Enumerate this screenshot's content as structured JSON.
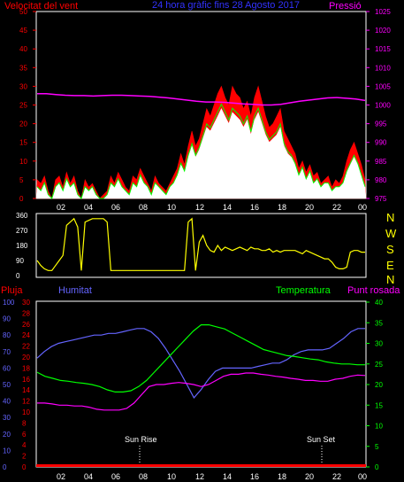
{
  "header": {
    "left": "Velocitat del vent",
    "center": "24 hora gràfic fins 28 Agosto 2017",
    "right": "Pressió"
  },
  "compass": [
    "N",
    "W",
    "S",
    "E",
    "N"
  ],
  "colors": {
    "red": "#ff0000",
    "green": "#00ff00",
    "white": "#ffffff",
    "magenta": "#ff00ff",
    "yellow": "#ffff00",
    "blue": "#6464ff",
    "bg": "#000000",
    "frame": "#ffffff"
  },
  "chart_data": [
    {
      "id": "wind",
      "type": "line",
      "x_ticks": [
        "02",
        "04",
        "06",
        "08",
        "10",
        "12",
        "14",
        "16",
        "18",
        "20",
        "22",
        "00"
      ],
      "y_ticks_left": [
        0,
        5,
        10,
        15,
        20,
        25,
        30,
        35,
        40,
        45,
        50
      ],
      "y_ticks_right": [
        975,
        980,
        985,
        990,
        995,
        1000,
        1005,
        1010,
        1015,
        1020,
        1025
      ],
      "ylim": [
        0,
        50
      ],
      "ylim_right": [
        975,
        1025
      ],
      "gust": [
        5,
        4,
        6,
        2,
        0,
        5,
        6,
        3,
        7,
        4,
        6,
        2,
        0,
        5,
        3,
        4,
        2,
        0,
        1,
        2,
        6,
        4,
        7,
        5,
        3,
        2,
        6,
        5,
        8,
        6,
        4,
        2,
        6,
        4,
        3,
        2,
        4,
        6,
        8,
        12,
        9,
        14,
        18,
        14,
        16,
        20,
        24,
        22,
        25,
        28,
        30,
        27,
        25,
        30,
        28,
        27,
        24,
        26,
        22,
        27,
        30,
        26,
        22,
        19,
        20,
        22,
        24,
        18,
        16,
        14,
        12,
        8,
        10,
        7,
        9,
        6,
        7,
        4,
        5,
        6,
        3,
        5,
        4,
        6,
        10,
        13,
        15,
        12,
        9,
        5
      ],
      "speed": [
        3,
        2,
        4,
        1,
        0,
        3,
        4,
        2,
        5,
        3,
        4,
        1,
        0,
        3,
        2,
        3,
        1,
        0,
        0,
        1,
        4,
        3,
        5,
        3,
        2,
        1,
        4,
        3,
        6,
        4,
        3,
        1,
        4,
        3,
        2,
        1,
        3,
        4,
        6,
        9,
        7,
        11,
        14,
        11,
        13,
        16,
        19,
        18,
        20,
        22,
        24,
        22,
        20,
        23,
        22,
        21,
        19,
        21,
        17,
        21,
        23,
        20,
        17,
        15,
        16,
        17,
        19,
        14,
        12,
        11,
        9,
        6,
        8,
        5,
        7,
        4,
        5,
        3,
        4,
        4,
        2,
        3,
        3,
        4,
        7,
        9,
        11,
        9,
        6,
        3
      ],
      "pressure": [
        1003,
        1003,
        1002.8,
        1002.6,
        1002.5,
        1002.5,
        1002.4,
        1002.5,
        1002.6,
        1002.6,
        1002.5,
        1002.4,
        1002.3,
        1002.1,
        1001.9,
        1001.6,
        1001.3,
        1001,
        1000.8,
        1000.8,
        1000.7,
        1000.5,
        1000.3,
        1000.2,
        1000,
        1000,
        1000.2,
        1000.6,
        1001,
        1001.3,
        1001.6,
        1001.9,
        1002,
        1001.8,
        1001.6,
        1001.2
      ],
      "series": [
        {
          "name": "Velocitat del vent"
        },
        {
          "name": "Pressió"
        }
      ]
    },
    {
      "id": "direction",
      "type": "line",
      "y_ticks": [
        0,
        90,
        180,
        270,
        360
      ],
      "ylim": [
        0,
        360
      ],
      "values": [
        90,
        60,
        40,
        30,
        30,
        60,
        90,
        120,
        300,
        320,
        340,
        290,
        30,
        320,
        330,
        340,
        340,
        340,
        340,
        320,
        30,
        30,
        30,
        30,
        30,
        30,
        30,
        30,
        30,
        30,
        30,
        30,
        30,
        30,
        30,
        30,
        30,
        30,
        30,
        30,
        30,
        320,
        340,
        30,
        200,
        240,
        180,
        150,
        140,
        180,
        150,
        170,
        160,
        150,
        160,
        170,
        160,
        150,
        170,
        160,
        160,
        150,
        150,
        160,
        140,
        150,
        140,
        150,
        150,
        150,
        150,
        140,
        130,
        150,
        140,
        130,
        120,
        110,
        100,
        100,
        80,
        50,
        40,
        40,
        50,
        140,
        150,
        150,
        140,
        140
      ]
    },
    {
      "id": "climate",
      "type": "line",
      "labels": {
        "rain": "Pluja",
        "humidity": "Humitat",
        "temperature": "Temperatura",
        "dew": "Punt rosada"
      },
      "x_ticks": [
        "02",
        "04",
        "06",
        "08",
        "10",
        "12",
        "14",
        "16",
        "18",
        "20",
        "22",
        "00"
      ],
      "y_ticks_humidity": [
        0,
        10,
        20,
        30,
        40,
        50,
        60,
        70,
        80,
        90,
        100
      ],
      "y_ticks_rain": [
        0,
        2,
        4,
        6,
        8,
        10,
        12,
        14,
        16,
        18,
        20,
        22,
        24,
        26,
        28,
        30
      ],
      "y_ticks_temp": [
        0,
        5,
        10,
        15,
        20,
        25,
        30,
        35,
        40
      ],
      "ylim_humidity": [
        0,
        100
      ],
      "ylim_temp": [
        0,
        40
      ],
      "humidity": [
        66,
        70,
        73,
        75,
        76,
        77,
        78,
        79,
        80,
        80,
        81,
        81,
        82,
        83,
        84,
        84,
        82,
        78,
        72,
        65,
        58,
        50,
        42,
        47,
        53,
        58,
        60,
        60,
        60,
        60,
        60,
        61,
        62,
        63,
        63,
        65,
        68,
        70,
        71,
        71,
        71,
        72,
        75,
        78,
        82,
        84,
        84
      ],
      "temperature": [
        23,
        22,
        21.5,
        21,
        20.8,
        20.5,
        20.3,
        20,
        19.5,
        18.7,
        18.2,
        18.2,
        18.5,
        19.5,
        21,
        23,
        25,
        27,
        29,
        31,
        33,
        34.5,
        34.5,
        34,
        33.5,
        32.5,
        31.5,
        30.5,
        29.5,
        28.5,
        28,
        27.5,
        27,
        26.8,
        26.5,
        26.2,
        26,
        25.5,
        25.2,
        25,
        25,
        24.8,
        24.8
      ],
      "dew": [
        15.5,
        15.5,
        15.3,
        15,
        15,
        14.8,
        14.8,
        14.5,
        14,
        13.8,
        13.8,
        13.8,
        14.2,
        15.5,
        17.5,
        19.5,
        20,
        20,
        20.3,
        20.5,
        20.3,
        20,
        19.5,
        20,
        21,
        22,
        22.5,
        22.5,
        22.8,
        22.8,
        22.5,
        22.3,
        22,
        21.8,
        21.5,
        21.3,
        21,
        21,
        20.8,
        20.8,
        21.3,
        21.5,
        22,
        22.3,
        22.2
      ],
      "rain": 0,
      "annotations": [
        "Sun Rise",
        "Sun Set"
      ]
    }
  ]
}
